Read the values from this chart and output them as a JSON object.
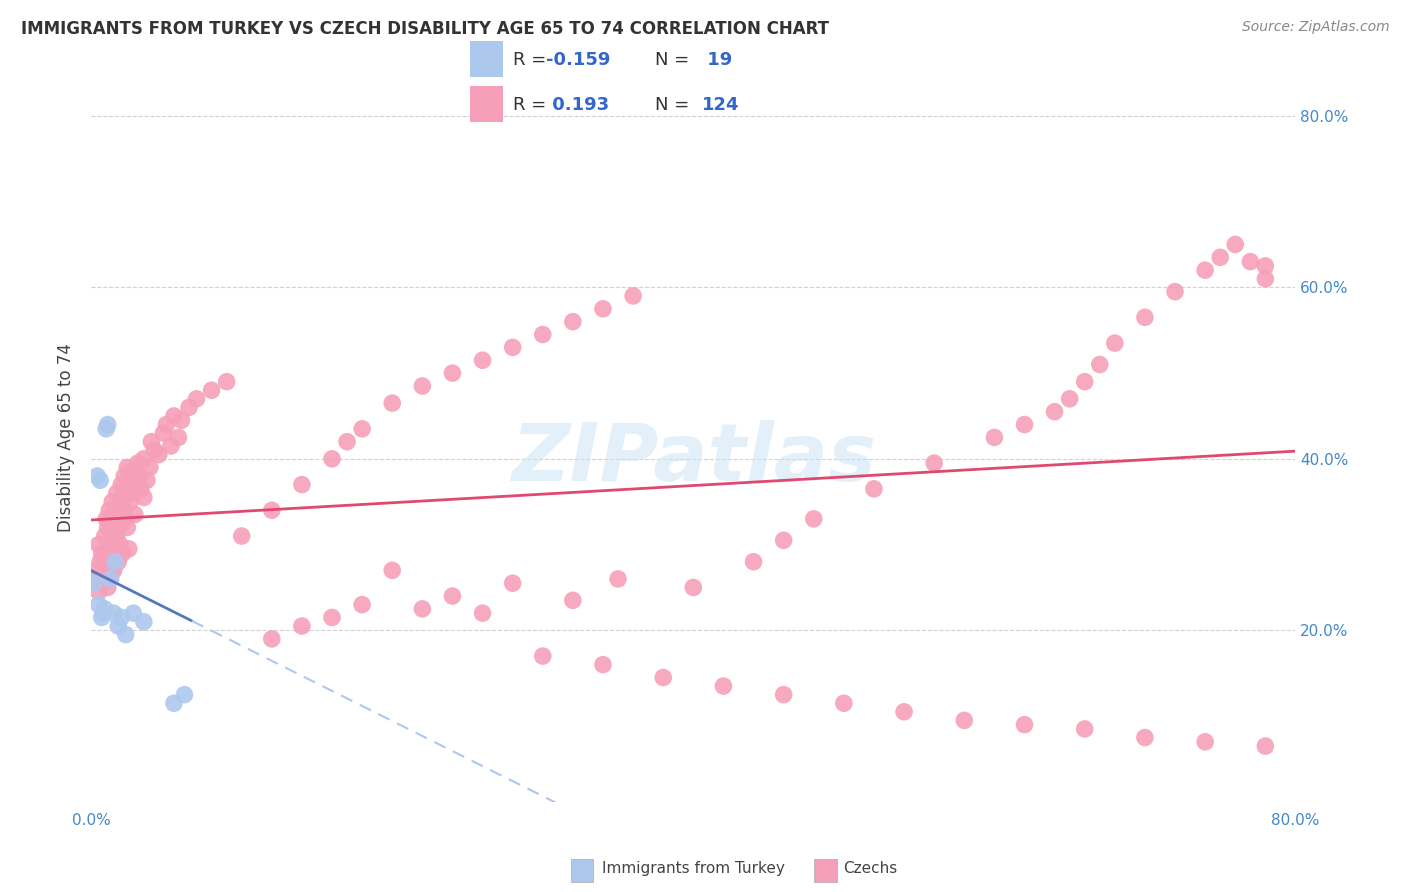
{
  "title": "IMMIGRANTS FROM TURKEY VS CZECH DISABILITY AGE 65 TO 74 CORRELATION CHART",
  "source": "Source: ZipAtlas.com",
  "ylabel": "Disability Age 65 to 74",
  "xlim": [
    0.0,
    80.0
  ],
  "ylim": [
    0.0,
    85.0
  ],
  "ytick_vals": [
    20.0,
    40.0,
    60.0,
    80.0
  ],
  "xtick_left_label": "0.0%",
  "xtick_right_label": "80.0%",
  "legend_r1": "-0.159",
  "legend_n1": "19",
  "legend_r2": "0.193",
  "legend_n2": "124",
  "color_turkey": "#adc8ed",
  "color_czech": "#f5a0b8",
  "trend_color_turkey_solid": "#5577bb",
  "trend_color_turkey_dash": "#adc8ed",
  "trend_color_czech": "#e04870",
  "background_color": "#ffffff",
  "watermark": "ZIPatlas",
  "label_turkey": "Immigrants from Turkey",
  "label_czech": "Czechs",
  "turkey_x": [
    0.2,
    0.4,
    0.5,
    0.6,
    0.7,
    0.8,
    0.9,
    1.0,
    1.1,
    1.3,
    1.5,
    1.6,
    1.8,
    2.0,
    2.3,
    2.8,
    3.5,
    5.5,
    6.2
  ],
  "turkey_y": [
    25.5,
    38.0,
    23.0,
    37.5,
    21.5,
    22.0,
    22.5,
    43.5,
    44.0,
    26.0,
    22.0,
    28.0,
    20.5,
    21.5,
    19.5,
    22.0,
    21.0,
    11.5,
    12.5
  ],
  "czech_x": [
    0.3,
    0.4,
    0.5,
    0.5,
    0.6,
    0.7,
    0.8,
    0.9,
    1.0,
    1.0,
    1.1,
    1.1,
    1.2,
    1.2,
    1.3,
    1.3,
    1.4,
    1.4,
    1.5,
    1.5,
    1.6,
    1.6,
    1.7,
    1.7,
    1.8,
    1.8,
    1.9,
    2.0,
    2.0,
    2.1,
    2.1,
    2.2,
    2.2,
    2.3,
    2.3,
    2.4,
    2.4,
    2.5,
    2.5,
    2.6,
    2.7,
    2.8,
    2.9,
    3.0,
    3.1,
    3.2,
    3.3,
    3.5,
    3.5,
    3.7,
    3.9,
    4.0,
    4.2,
    4.5,
    4.8,
    5.0,
    5.3,
    5.5,
    5.8,
    6.0,
    6.5,
    7.0,
    8.0,
    9.0,
    10.0,
    12.0,
    14.0,
    16.0,
    17.0,
    18.0,
    20.0,
    22.0,
    24.0,
    26.0,
    28.0,
    30.0,
    32.0,
    34.0,
    36.0,
    40.0,
    44.0,
    46.0,
    48.0,
    52.0,
    56.0,
    60.0,
    62.0,
    64.0,
    65.0,
    66.0,
    67.0,
    68.0,
    70.0,
    72.0,
    74.0,
    75.0,
    76.0,
    77.0,
    78.0,
    78.0,
    28.0,
    32.0,
    20.0,
    22.0,
    18.0,
    16.0,
    24.0,
    26.0,
    14.0,
    12.0,
    30.0,
    34.0,
    38.0,
    42.0,
    46.0,
    50.0,
    54.0,
    58.0,
    62.0,
    66.0,
    70.0,
    74.0,
    78.0,
    35.0
  ],
  "czech_y": [
    27.0,
    26.0,
    30.0,
    24.5,
    28.0,
    29.0,
    25.5,
    31.0,
    27.5,
    33.0,
    25.0,
    32.0,
    28.5,
    34.0,
    30.5,
    26.5,
    29.5,
    35.0,
    31.5,
    27.0,
    33.5,
    29.5,
    31.0,
    36.0,
    34.5,
    28.0,
    30.0,
    32.5,
    37.0,
    35.5,
    29.0,
    34.0,
    38.0,
    33.0,
    36.5,
    32.0,
    39.0,
    37.5,
    29.5,
    35.0,
    38.5,
    36.0,
    33.5,
    37.0,
    39.5,
    38.0,
    36.5,
    40.0,
    35.5,
    37.5,
    39.0,
    42.0,
    41.0,
    40.5,
    43.0,
    44.0,
    41.5,
    45.0,
    42.5,
    44.5,
    46.0,
    47.0,
    48.0,
    49.0,
    31.0,
    34.0,
    37.0,
    40.0,
    42.0,
    43.5,
    46.5,
    48.5,
    50.0,
    51.5,
    53.0,
    54.5,
    56.0,
    57.5,
    59.0,
    25.0,
    28.0,
    30.5,
    33.0,
    36.5,
    39.5,
    42.5,
    44.0,
    45.5,
    47.0,
    49.0,
    51.0,
    53.5,
    56.5,
    59.5,
    62.0,
    63.5,
    65.0,
    63.0,
    62.5,
    61.0,
    25.5,
    23.5,
    27.0,
    22.5,
    23.0,
    21.5,
    24.0,
    22.0,
    20.5,
    19.0,
    17.0,
    16.0,
    14.5,
    13.5,
    12.5,
    11.5,
    10.5,
    9.5,
    9.0,
    8.5,
    7.5,
    7.0,
    6.5,
    26.0
  ]
}
